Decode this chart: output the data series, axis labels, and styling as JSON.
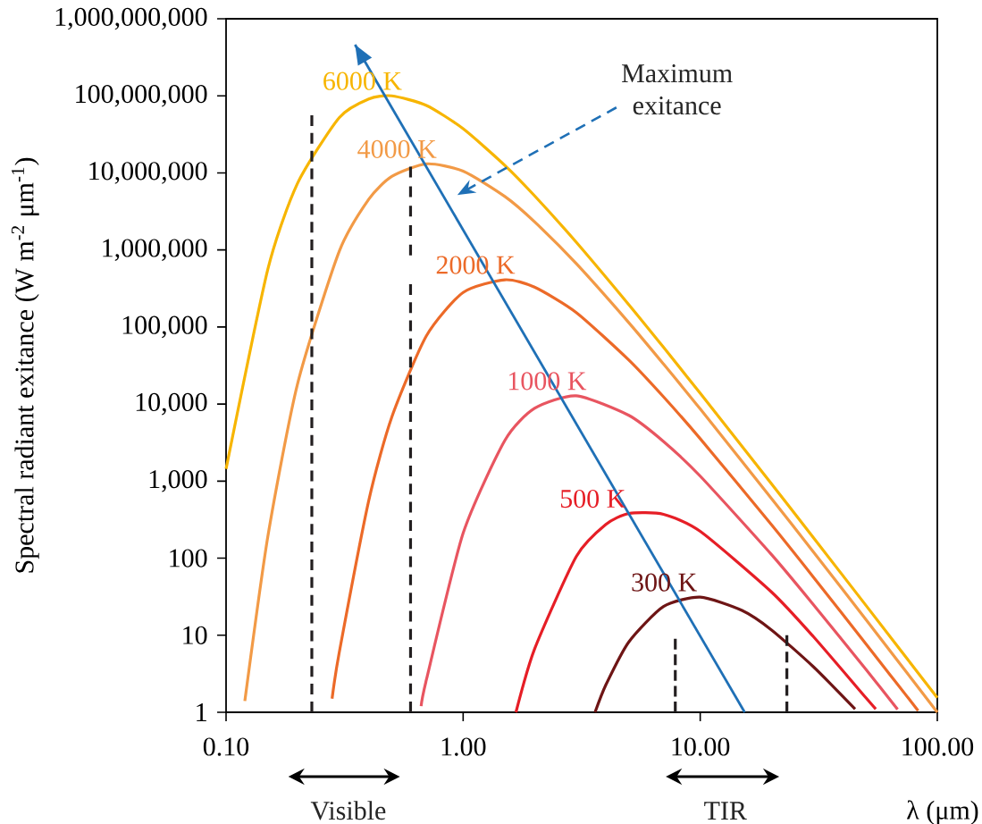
{
  "chart_data": {
    "type": "line",
    "xlabel": "λ (μm)",
    "ylabel": "Spectral radiant exitance (W m$^{-2}$ μm$^{-1}$)",
    "log": "xy",
    "xlim": [
      0.1,
      100
    ],
    "xticks": [
      {
        "value": 0.1,
        "label": "0.10"
      },
      {
        "value": 1,
        "label": "1.00"
      },
      {
        "value": 10,
        "label": "10.00"
      },
      {
        "value": 100,
        "label": "100.00"
      }
    ],
    "ylim": [
      1,
      1000000000
    ],
    "yticks": [
      1,
      10,
      100,
      {
        "value": 1000,
        "label": "1,000"
      },
      {
        "value": 10000,
        "label": "10,000"
      },
      {
        "value": 100000,
        "label": "100,000"
      },
      {
        "value": 1000000,
        "label": "1,000,000"
      },
      {
        "value": 10000000,
        "label": "10,000,000"
      },
      {
        "value": 100000000,
        "label": "100,000,000"
      },
      {
        "value": 1000000000,
        "label": "1,000,000,000"
      }
    ],
    "series": [
      {
        "name": "6000 K",
        "color": "#f7b500",
        "x": [
          0.1,
          0.15,
          0.2,
          0.3,
          0.4,
          0.5,
          0.7,
          1,
          1.5,
          2,
          3,
          5,
          7,
          10,
          20,
          30,
          50,
          100
        ],
        "values": [
          1440,
          560000,
          7260000,
          52000000,
          91000000,
          100000000,
          75000000,
          37400000,
          12500000,
          5050000,
          1260000,
          194500,
          54500,
          13800,
          918,
          185,
          24.4,
          1.54
        ]
      },
      {
        "name": "4000 K",
        "color": "#f29a46",
        "x": [
          0.12,
          0.15,
          0.2,
          0.3,
          0.4,
          0.5,
          0.7,
          1,
          1.5,
          2,
          3,
          5,
          7,
          10,
          20,
          30,
          50,
          100
        ],
        "values": [
          1.4,
          190,
          18000,
          956000,
          4550000,
          8990000,
          13100000,
          10540000,
          4930000,
          2320000,
          665000,
          113700,
          33100,
          8640,
          593,
          121,
          16,
          1.0
        ]
      },
      {
        "name": "2000 K",
        "color": "#ec6a28",
        "x": [
          0.28,
          0.3,
          0.4,
          0.5,
          0.7,
          1,
          1.5,
          2,
          3,
          5,
          7,
          10,
          20,
          30,
          50,
          83
        ],
        "values": [
          1.5,
          5.9,
          562,
          6760,
          76800,
          281000,
          410000,
          329000,
          154000,
          37200,
          12400,
          3550,
          270,
          56.8,
          7.7,
          1.05
        ]
      },
      {
        "name": "1000 K",
        "color": "#e85560",
        "x": [
          0.665,
          0.7,
          1,
          1.5,
          2,
          3,
          5,
          7,
          10,
          20,
          30,
          50,
          68
        ],
        "values": [
          1.2,
          2.65,
          211,
          3380,
          8780,
          12800,
          7130,
          3270,
          1160,
          111,
          25,
          3.6,
          1.09
        ]
      },
      {
        "name": "500 K",
        "color": "#e61e26",
        "x": [
          1.67,
          2,
          3,
          4,
          5,
          7,
          10,
          20,
          30,
          50,
          55
        ],
        "values": [
          1.0,
          6.6,
          105,
          274,
          380,
          371,
          223,
          36.3,
          9.6,
          1.54,
          1.1
        ]
      },
      {
        "name": "300 K",
        "color": "#6e1515",
        "x": [
          3.6,
          4,
          5,
          7,
          10,
          15,
          20,
          30,
          45
        ],
        "values": [
          1.0,
          2.27,
          8.2,
          23.6,
          31.2,
          21.0,
          11.7,
          3.9,
          1.1
        ]
      },
      {
        "color": "#1f70b6",
        "line_style": "solid",
        "x": [
          15.4,
          0.35
        ],
        "values": [
          1,
          460000000
        ]
      },
      {
        "color": "#231f20",
        "line_style": "dashed",
        "x": [
          0.23,
          0.23
        ],
        "values": [
          1,
          56000000
        ]
      },
      {
        "color": "#231f20",
        "line_style": "dashed",
        "x": [
          0.6,
          0.6
        ],
        "values": [
          1,
          360000
        ]
      },
      {
        "color": "#231f20",
        "line_style": "dashed",
        "x": [
          0.6,
          0.6
        ],
        "values": [
          850000,
          12000000
        ]
      },
      {
        "color": "#231f20",
        "line_style": "dashed",
        "x": [
          7.85,
          7.85
        ],
        "values": [
          1,
          9
        ]
      },
      {
        "color": "#231f20",
        "line_style": "dashed",
        "x": [
          23.2,
          23.2
        ],
        "values": [
          1,
          10
        ]
      }
    ],
    "annotations": [
      "Maximum exitance",
      "Visible",
      "TIR"
    ]
  }
}
